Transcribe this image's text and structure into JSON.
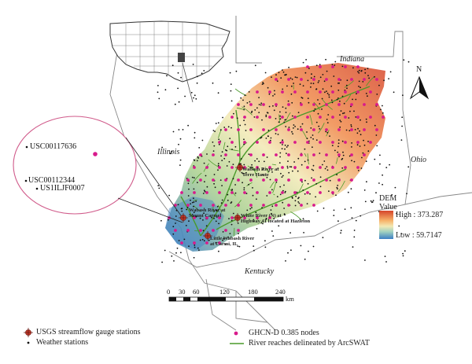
{
  "map": {
    "states": {
      "indiana": "Indiana",
      "illinois": "Illinois",
      "ohio": "Ohio",
      "kentucky": "Kentucky"
    },
    "north_label": "N",
    "dem": {
      "title_line1": "DEM",
      "title_line2": "Value",
      "high": "High : 373.287",
      "low": "Low : 59.7147",
      "color_high": "#d6452a",
      "color_mid": "#f2e9b4",
      "color_low": "#3b7fc4"
    },
    "inset_stations": [
      {
        "label": "USC00117636"
      },
      {
        "label": "USC00112344"
      },
      {
        "label": "US1ILJF0007"
      }
    ],
    "gauge_stations": [
      {
        "label_line1": "Wabash River at",
        "label_line2": "Terre Haute"
      },
      {
        "label_line1": "Wabash River at",
        "label_line2": "Mount Carmel"
      },
      {
        "label_line1": "White River (N) at",
        "label_line2": "Highway 41 located at Hazleton"
      },
      {
        "label_line1": "Little Wabash River",
        "label_line2": "at Carmi, IL"
      }
    ],
    "scale_bar": {
      "ticks": [
        "0",
        "30",
        "60",
        "120",
        "180",
        "240"
      ],
      "unit": "km"
    },
    "colors": {
      "river": "#4a9a2a",
      "ghcn": "#d81b8c",
      "gauge": "#c0392b",
      "boundary": "#888888",
      "inset_ellipse": "#d05a8a"
    }
  },
  "legend": {
    "gauge": "USGS streamflow gauge stations",
    "weather": "Weather stations",
    "ghcn": "GHCN-D 0.385 nodes",
    "river": "River reaches delineated by ArcSWAT"
  }
}
